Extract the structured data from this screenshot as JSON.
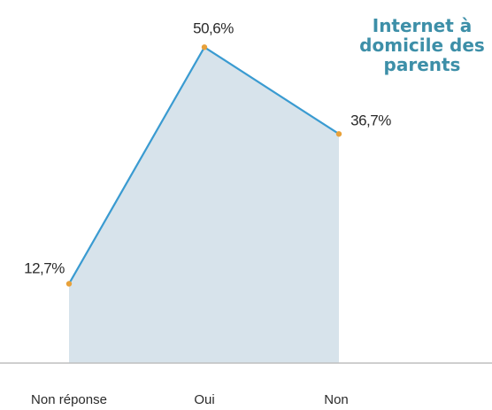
{
  "chart_data": {
    "type": "area",
    "title": "Internet à domicile des parents",
    "categories": [
      "Non réponse",
      "Oui",
      "Non"
    ],
    "values": [
      12.7,
      50.6,
      36.7
    ],
    "value_labels": [
      "12,7%",
      "50,6%",
      "36,7%"
    ],
    "unit": "%",
    "xlabel": "",
    "ylabel": "",
    "ylim": [
      0,
      60
    ],
    "grid": false,
    "legend": "none"
  },
  "colors": {
    "line": "#3a9bd1",
    "area_fill": "#d7e3eb",
    "marker": "#e8a13a",
    "title": "#3d8fa8",
    "axis": "#bfbfbf",
    "text": "#2a2a2a"
  }
}
